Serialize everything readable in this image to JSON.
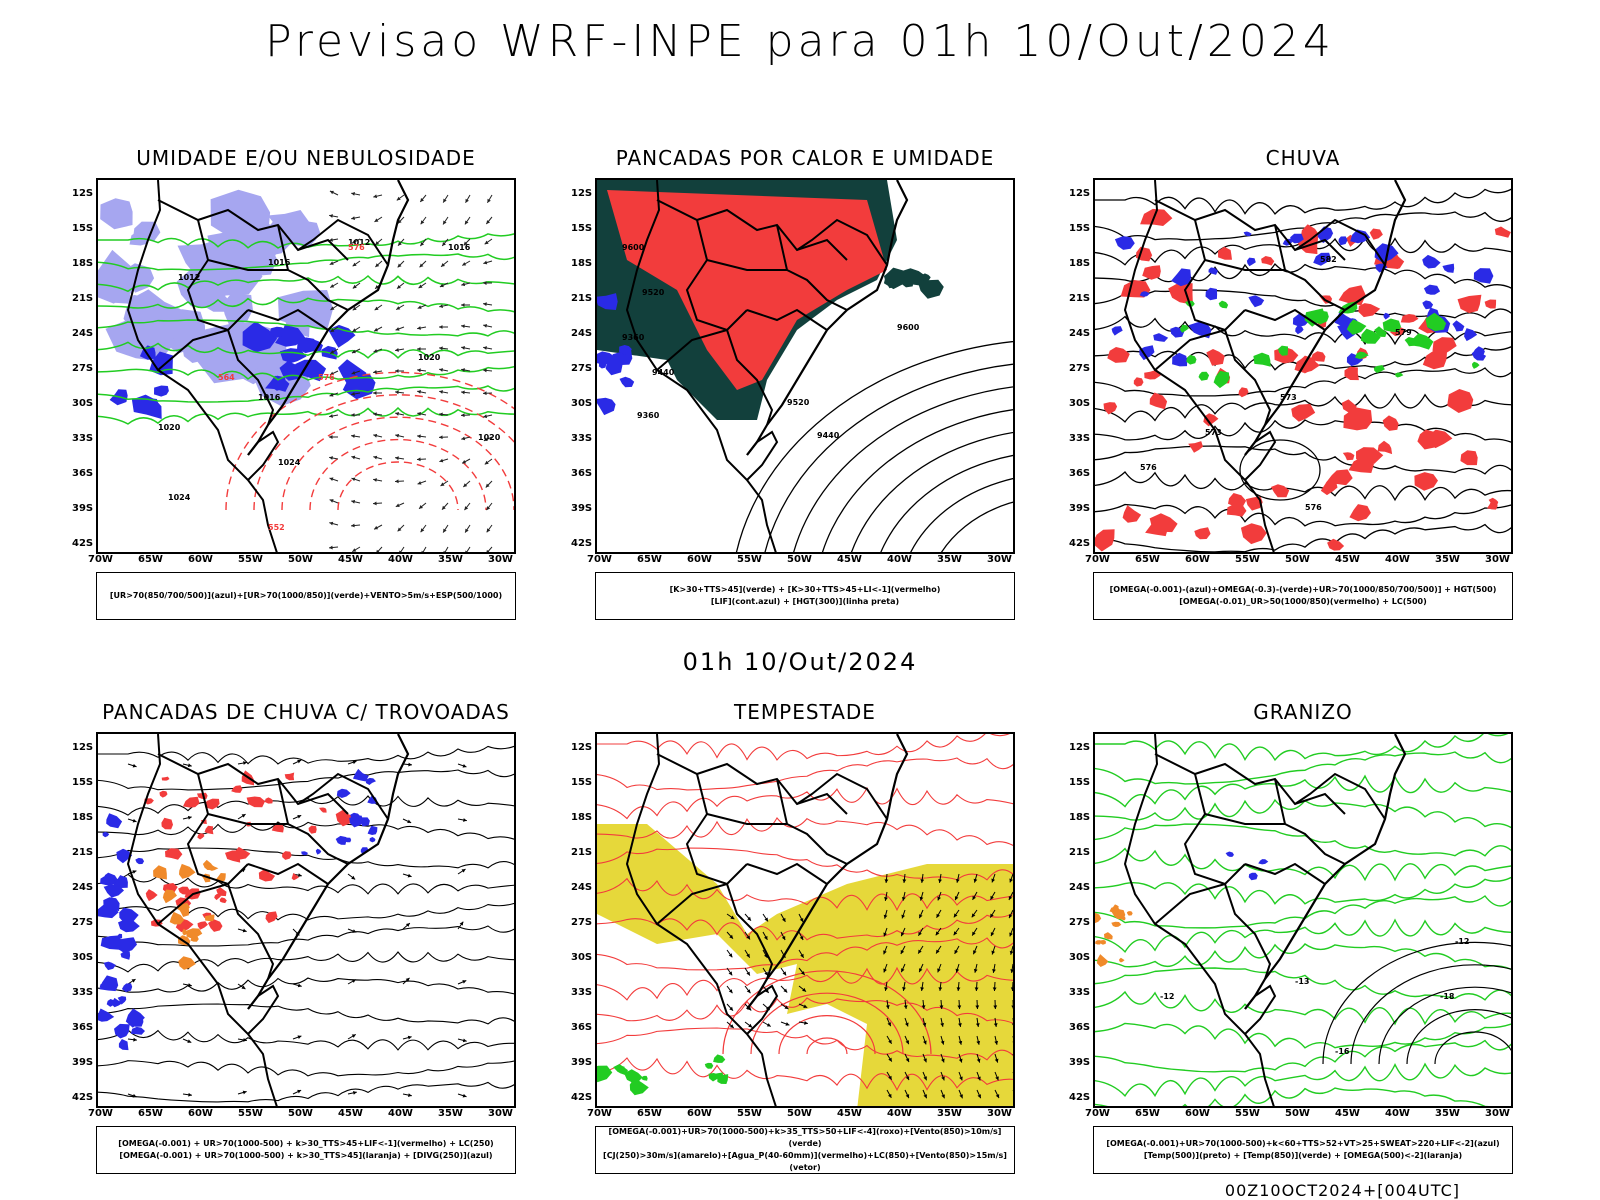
{
  "title": "Previsao WRF-INPE  para 01h 10/Out/2024",
  "subtitle": "01h 10/Out/2024",
  "footer": "00Z10OCT2024+[004UTC]",
  "axes": {
    "lat_labels": [
      "12S",
      "15S",
      "18S",
      "21S",
      "24S",
      "27S",
      "30S",
      "33S",
      "36S",
      "39S",
      "42S"
    ],
    "lon_labels": [
      "70W",
      "65W",
      "60W",
      "55W",
      "50W",
      "45W",
      "40W",
      "35W",
      "30W"
    ]
  },
  "colors": {
    "blue_dark": "#2a2ae6",
    "blue_light": "#a6a6f0",
    "green": "#22cc22",
    "red": "#f23c3c",
    "dark_teal": "#12403c",
    "yellow": "#e6d83a",
    "orange": "#f08a2a"
  },
  "panels": [
    {
      "id": "umidade",
      "title": "UMIDADE E/OU NEBULOSIDADE",
      "legend": [
        "[UR>70(850/700/500)](azul)+[UR>70(1000/850)](verde)+VENTO>5m/s+ESP(500/1000)"
      ],
      "contour_labels": [
        "1012",
        "1016",
        "1016",
        "1012",
        "1020",
        "1024",
        "1020",
        "1016",
        "1020",
        "1024",
        "576",
        "564",
        "576",
        "552"
      ]
    },
    {
      "id": "pancadas-calor",
      "title": "PANCADAS POR CALOR E UMIDADE",
      "legend": [
        "[K>30+TTS>45](verde) + [K>30+TTS>45+LI<-1](vermelho)",
        "[LIF](cont.azul) + [HGT(300)](linha preta)"
      ],
      "contour_labels": [
        "9600",
        "9520",
        "9360",
        "9440",
        "9600",
        "9520",
        "9440",
        "9360"
      ]
    },
    {
      "id": "chuva",
      "title": "CHUVA",
      "legend": [
        "[OMEGA(-0.001)-(azul)+OMEGA(-0.3)-(verde)+UR>70(1000/850/700/500)] + HGT(500)",
        "[OMEGA(-0.01)_UR>50(1000/850)(vermelho) + LC(500)"
      ],
      "contour_labels": [
        "582",
        "579",
        "576",
        "573",
        "576",
        "573"
      ]
    },
    {
      "id": "trovoadas",
      "title": "PANCADAS DE CHUVA C/ TROVOADAS",
      "legend": [
        "[OMEGA(-0.001) + UR>70(1000-500) + k>30_TTS>45+LIF<-1](vermelho) + LC(250)",
        "[OMEGA(-0.001) + UR>70(1000-500) + k>30_TTS>45](laranja) + [DIVG(250)](azul)"
      ],
      "contour_labels": []
    },
    {
      "id": "tempestade",
      "title": "TEMPESTADE",
      "legend": [
        "[OMEGA(-0.001)+UR>70(1000-500)+k>35_TTS>50+LIF<-4](roxo)+[Vento(850)>10m/s](verde)",
        "[CJ(250)>30m/s](amarelo)+[Agua_P(40-60mm)](vermelho)+LC(850)+[Vento(850)>15m/s](vetor)"
      ],
      "contour_labels": []
    },
    {
      "id": "granizo",
      "title": "GRANIZO",
      "legend": [
        "[OMEGA(-0.001)+UR>70(1000-500)+k<60+TTS>52+VT>25+SWEAT>220+LIF<-2](azul)",
        "[Temp(500)](preto) + [Temp(850)](verde) + [OMEGA(500)<-2](laranja)"
      ],
      "contour_labels": [
        "-12",
        "-13",
        "-16",
        "-18",
        "-12"
      ]
    }
  ]
}
